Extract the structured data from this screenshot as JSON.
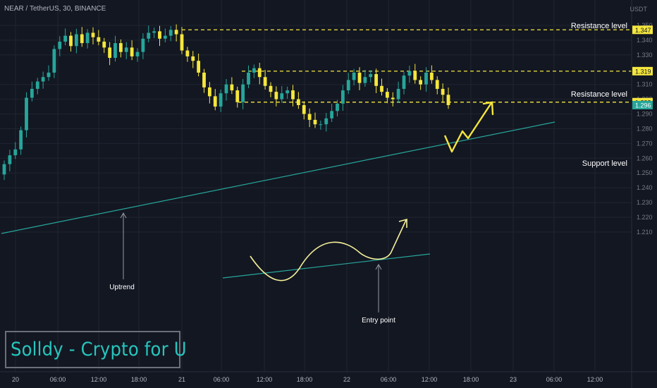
{
  "header": {
    "symbol_line": "NEAR / TetherUS, 30, BINANCE"
  },
  "axis": {
    "currency": "USDT"
  },
  "price_axis": {
    "ticks": [
      "1.350",
      "1.340",
      "1.330",
      "1.310",
      "1.300",
      "1.290",
      "1.280",
      "1.270",
      "1.260",
      "1.250",
      "1.240",
      "1.230",
      "1.220",
      "1.210"
    ]
  },
  "time_axis": {
    "ticks": [
      "20",
      "06:00",
      "12:00",
      "18:00",
      "21",
      "06:00",
      "12:00",
      "18:00",
      "22",
      "06:00",
      "12:00",
      "18:00",
      "23",
      "06:00",
      "12:00"
    ]
  },
  "price_badges": [
    {
      "label": "1.347",
      "value": 1.347,
      "style": "yellow"
    },
    {
      "label": "1.319",
      "value": 1.319,
      "style": "yellow"
    },
    {
      "label": "1.298",
      "value": 1.298,
      "style": "yellow"
    },
    {
      "label": "1.296",
      "value": 1.296,
      "style": "teal"
    }
  ],
  "annotations": {
    "resistance_top": "Resistance level",
    "resistance_mid": "Resistance level",
    "support": "Support level",
    "uptrend": "Uptrend",
    "entry": "Entry point"
  },
  "watermark": "Solldy - Crypto for U",
  "colors": {
    "background": "#131722",
    "up_candle": "#26a69a",
    "down_candle": "#f5e73d",
    "level_line": "#f5e73d",
    "trendline": "#26a69a",
    "wave": "#f7f29c",
    "grid": "#1f2430"
  },
  "chart_data": {
    "type": "candlestick",
    "symbol": "NEAR / TetherUS",
    "interval": "30",
    "exchange": "BINANCE",
    "y_range": [
      1.209,
      1.354
    ],
    "levels": [
      {
        "label": "Resistance level",
        "price": 1.347
      },
      {
        "label": "Resistance level",
        "price": 1.319
      },
      {
        "label": "Support level",
        "price": 1.298
      }
    ],
    "last_price": 1.296,
    "close_series": [
      1.256,
      1.262,
      1.266,
      1.279,
      1.301,
      1.307,
      1.312,
      1.315,
      1.318,
      1.334,
      1.339,
      1.343,
      1.336,
      1.344,
      1.338,
      1.345,
      1.342,
      1.339,
      1.335,
      1.328,
      1.338,
      1.332,
      1.335,
      1.329,
      1.332,
      1.341,
      1.345,
      1.346,
      1.341,
      1.343,
      1.347,
      1.344,
      1.333,
      1.329,
      1.326,
      1.318,
      1.308,
      1.302,
      1.295,
      1.304,
      1.31,
      1.306,
      1.298,
      1.31,
      1.318,
      1.321,
      1.315,
      1.309,
      1.305,
      1.3,
      1.304,
      1.306,
      1.3,
      1.296,
      1.29,
      1.286,
      1.283,
      1.283,
      1.287,
      1.292,
      1.297,
      1.306,
      1.313,
      1.318,
      1.311,
      1.315,
      1.317,
      1.309,
      1.305,
      1.301,
      1.3,
      1.307,
      1.316,
      1.319,
      1.313,
      1.31,
      1.318,
      1.313,
      1.307,
      1.303,
      1.296
    ]
  }
}
